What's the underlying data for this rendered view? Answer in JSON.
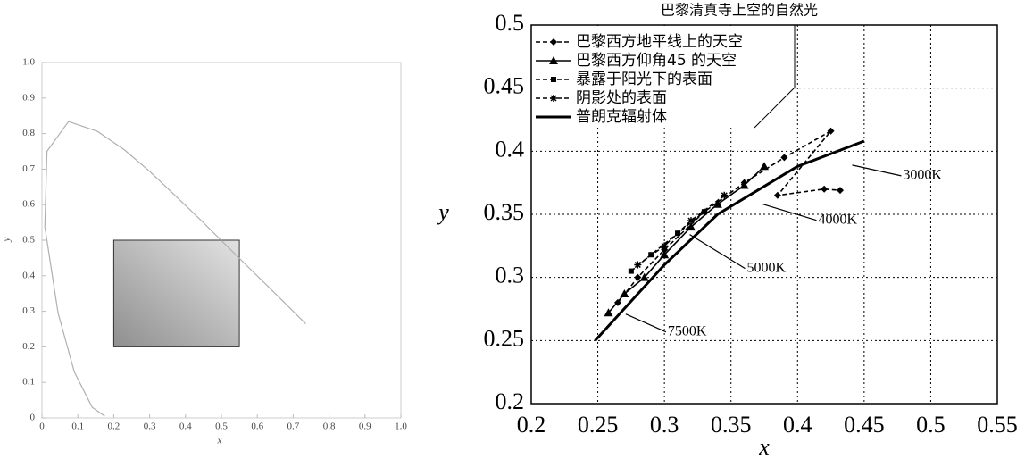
{
  "chart_data": [
    {
      "type": "line",
      "xlabel": "x",
      "ylabel": "y",
      "xlim": [
        0,
        1
      ],
      "ylim": [
        0,
        1
      ],
      "xticks": [
        0,
        0.1,
        0.2,
        0.3,
        0.4,
        0.5,
        0.6,
        0.7,
        0.8,
        0.9,
        {
          "value": 1,
          "label": "1.0"
        }
      ],
      "yticks": [
        0,
        0.1,
        0.2,
        0.3,
        0.4,
        0.5,
        0.6,
        0.7,
        0.8,
        0.9,
        {
          "value": 1,
          "label": "1.0"
        }
      ],
      "grid": false,
      "series": [
        {
          "color": "#b0b0b0",
          "line_style": "solid",
          "marker": "none",
          "x": [
            0.175,
            0.14,
            0.09,
            0.045,
            0.008,
            0.014,
            0.074,
            0.155,
            0.23,
            0.302,
            0.373,
            0.444,
            0.512,
            0.575,
            0.627,
            0.666,
            0.735
          ],
          "values": [
            0.005,
            0.03,
            0.13,
            0.295,
            0.538,
            0.75,
            0.834,
            0.806,
            0.754,
            0.692,
            0.624,
            0.555,
            0.487,
            0.424,
            0.373,
            0.334,
            0.265
          ]
        }
      ],
      "highlight": {
        "x": [
          0.2,
          0.55
        ],
        "y": [
          0.2,
          0.5
        ]
      }
    },
    {
      "type": "line",
      "title": "巴黎清真寺上空的自然光",
      "xlabel": "x",
      "ylabel": "y",
      "xlim": [
        0.2,
        0.55
      ],
      "ylim": [
        0.2,
        0.5
      ],
      "xticks": [
        0.2,
        0.25,
        0.3,
        0.35,
        0.4,
        0.45,
        0.5,
        0.55
      ],
      "yticks": [
        0.2,
        0.25,
        0.3,
        0.35,
        0.4,
        0.45,
        0.5
      ],
      "grid": true,
      "series": [
        {
          "name": "巴黎西方地平线上的天空",
          "color": "#000000",
          "line_style": "dashed",
          "marker": "diamond",
          "x": [
            0.265,
            0.28,
            0.3,
            0.33,
            0.36,
            0.39,
            0.425,
            0.385,
            0.42,
            0.432
          ],
          "values": [
            0.28,
            0.3,
            0.322,
            0.352,
            0.375,
            0.395,
            0.416,
            0.365,
            0.37,
            0.369
          ]
        },
        {
          "name": "巴黎西方仰角45 的天空",
          "color": "#000000",
          "line_style": "solid",
          "marker": "triangle",
          "x": [
            0.258,
            0.27,
            0.285,
            0.3,
            0.32,
            0.34,
            0.36,
            0.375
          ],
          "values": [
            0.272,
            0.287,
            0.3,
            0.318,
            0.34,
            0.358,
            0.373,
            0.388
          ]
        },
        {
          "name": "暴露于阳光下的表面",
          "color": "#000000",
          "line_style": "dashed",
          "marker": "square",
          "x": [
            0.275,
            0.29,
            0.31,
            0.33
          ],
          "values": [
            0.305,
            0.318,
            0.335,
            0.352
          ]
        },
        {
          "name": "阴影处的表面",
          "color": "#000000",
          "line_style": "dashed",
          "marker": "star",
          "x": [
            0.28,
            0.3,
            0.32,
            0.345
          ],
          "values": [
            0.31,
            0.325,
            0.345,
            0.365
          ]
        },
        {
          "name": "普朗克辐射体",
          "color": "#000000",
          "line_style": "thick",
          "marker": "none",
          "x": [
            0.248,
            0.3,
            0.34,
            0.4,
            0.45
          ],
          "values": [
            0.25,
            0.31,
            0.35,
            0.388,
            0.408
          ]
        }
      ],
      "annotations": [
        {
          "text": "3000K",
          "x": 0.441,
          "y": 0.389
        },
        {
          "text": "4000K",
          "x": 0.374,
          "y": 0.358
        },
        {
          "text": "5000K",
          "x": 0.319,
          "y": 0.334
        },
        {
          "text": "7500K",
          "x": 0.271,
          "y": 0.271
        }
      ]
    }
  ]
}
